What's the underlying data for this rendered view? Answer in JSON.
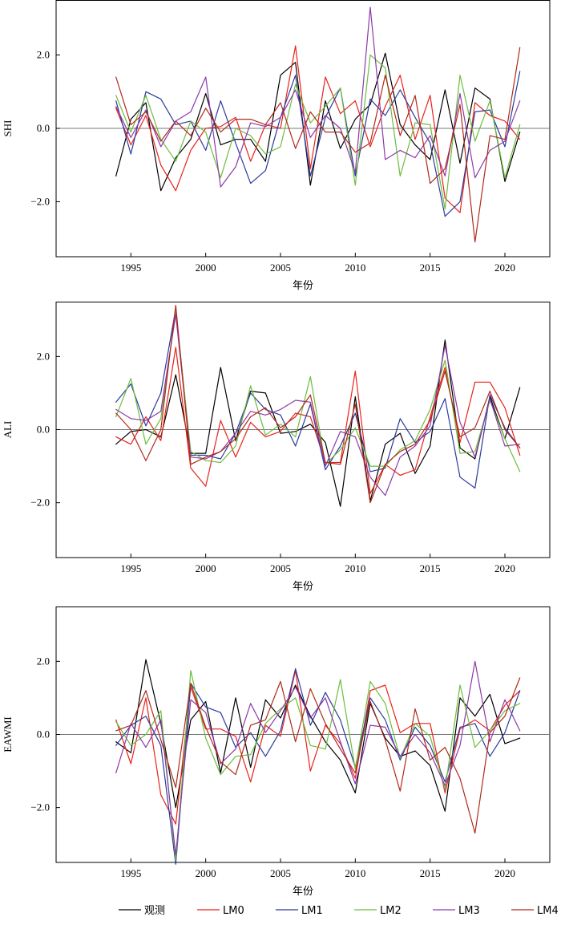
{
  "chart_data": [
    {
      "type": "line",
      "ylabel": "SHI",
      "xlabel": "年份",
      "xlim": [
        1990,
        2023
      ],
      "ylim": [
        -3.5,
        3.5
      ],
      "x_ticks": [
        1995,
        2000,
        2005,
        2010,
        2015,
        2020
      ],
      "y_ticks": [
        -2.0,
        0.0,
        2.0
      ],
      "y_tick_labels": [
        "−2.0",
        "0.0",
        "2.0"
      ],
      "zero_line": true,
      "x": [
        1994,
        1995,
        1996,
        1997,
        1998,
        1999,
        2000,
        2001,
        2002,
        2003,
        2004,
        2005,
        2006,
        2007,
        2008,
        2009,
        2010,
        2011,
        2012,
        2013,
        2014,
        2015,
        2016,
        2017,
        2018,
        2019,
        2020,
        2021
      ],
      "series": [
        {
          "name": "观测",
          "color": "#000000",
          "values": [
            -1.3,
            0.25,
            0.7,
            -1.7,
            -0.8,
            -0.3,
            0.95,
            -0.45,
            -0.3,
            -0.3,
            -0.9,
            1.45,
            1.8,
            -1.55,
            0.75,
            -0.55,
            0.25,
            0.65,
            2.05,
            0.1,
            -0.45,
            -0.85,
            1.05,
            -0.95,
            1.1,
            0.8,
            -1.45,
            -0.1
          ]
        },
        {
          "name": "LM0",
          "color": "#e8221a",
          "values": [
            0.55,
            -0.45,
            0.35,
            -1.0,
            -1.7,
            -0.6,
            0.0,
            0.05,
            0.3,
            -0.9,
            0.1,
            0.0,
            2.25,
            -1.1,
            1.4,
            0.4,
            0.75,
            -0.5,
            0.6,
            1.45,
            -0.3,
            0.9,
            -1.9,
            -2.3,
            0.7,
            0.35,
            0.2,
            -0.3
          ]
        },
        {
          "name": "LM1",
          "color": "#2b3b9c",
          "values": [
            0.75,
            -0.7,
            1.0,
            0.8,
            0.1,
            0.2,
            -0.6,
            0.75,
            -0.4,
            -1.5,
            -1.15,
            0.3,
            1.45,
            -1.3,
            0.3,
            1.1,
            -1.3,
            0.8,
            0.35,
            1.05,
            0.3,
            -0.4,
            -2.4,
            -2.0,
            0.45,
            0.5,
            -0.5,
            1.55
          ]
        },
        {
          "name": "LM2",
          "color": "#6cbd3d",
          "values": [
            0.9,
            -0.1,
            0.9,
            -0.3,
            -0.9,
            0.2,
            -0.1,
            -1.35,
            0.0,
            -0.2,
            -0.7,
            -0.5,
            1.2,
            0.15,
            0.6,
            1.1,
            -1.55,
            2.0,
            1.65,
            -1.3,
            0.15,
            0.1,
            -2.2,
            1.45,
            -0.35,
            0.75,
            -1.35,
            0.1
          ]
        },
        {
          "name": "LM3",
          "color": "#8b3aa8",
          "values": [
            0.6,
            -0.25,
            0.5,
            -0.5,
            0.2,
            0.45,
            1.4,
            -1.6,
            -1.05,
            0.15,
            0.05,
            0.3,
            1.05,
            -0.25,
            0.35,
            0.0,
            -1.2,
            3.3,
            -0.85,
            -0.6,
            -0.8,
            -0.2,
            -1.3,
            0.95,
            -1.35,
            -0.6,
            -0.35,
            0.75
          ]
        },
        {
          "name": "LM4",
          "color": "#b02a1a",
          "values": [
            1.4,
            0.1,
            0.45,
            -0.35,
            0.2,
            -0.2,
            0.55,
            -0.1,
            0.25,
            0.25,
            0.1,
            0.7,
            -0.55,
            0.45,
            -0.1,
            -0.1,
            -0.65,
            -0.4,
            1.45,
            -0.2,
            0.9,
            -1.5,
            -1.1,
            0.65,
            -3.1,
            -0.2,
            -0.3,
            2.2
          ]
        }
      ]
    },
    {
      "type": "line",
      "ylabel": "ALI",
      "xlabel": "年份",
      "xlim": [
        1990,
        2023
      ],
      "ylim": [
        -3.5,
        3.5
      ],
      "x_ticks": [
        1995,
        2000,
        2005,
        2010,
        2015,
        2020
      ],
      "y_ticks": [
        -2.0,
        0.0,
        2.0
      ],
      "y_tick_labels": [
        "−2.0",
        "0.0",
        "2.0"
      ],
      "zero_line": true,
      "x": [
        1994,
        1995,
        1996,
        1997,
        1998,
        1999,
        2000,
        2001,
        2002,
        2003,
        2004,
        2005,
        2006,
        2007,
        2008,
        2009,
        2010,
        2011,
        2012,
        2013,
        2014,
        2015,
        2016,
        2017,
        2018,
        2019,
        2020,
        2021
      ],
      "series": [
        {
          "name": "观测",
          "color": "#000000",
          "values": [
            -0.4,
            -0.05,
            0.0,
            -0.2,
            1.5,
            -0.65,
            -0.65,
            1.7,
            -0.3,
            1.05,
            1.0,
            -0.1,
            -0.05,
            0.15,
            -0.35,
            -2.1,
            0.9,
            -1.95,
            -0.4,
            -0.1,
            -1.2,
            -0.45,
            2.45,
            -0.5,
            -0.8,
            0.9,
            -0.25,
            1.15
          ]
        },
        {
          "name": "LM0",
          "color": "#e8221a",
          "values": [
            -0.2,
            -0.4,
            0.35,
            -0.3,
            2.25,
            -1.05,
            -1.55,
            0.25,
            -0.75,
            0.2,
            -0.2,
            -0.05,
            0.45,
            0.35,
            -0.9,
            -0.9,
            1.6,
            -1.75,
            -0.95,
            -1.25,
            -1.1,
            0.35,
            1.7,
            -0.35,
            1.3,
            1.3,
            0.6,
            -0.7
          ]
        },
        {
          "name": "LM1",
          "color": "#2b3b9c",
          "values": [
            0.75,
            1.25,
            0.1,
            1.0,
            3.3,
            -0.7,
            -0.7,
            -0.8,
            -0.1,
            1.0,
            0.55,
            0.4,
            -0.45,
            0.7,
            -1.1,
            -0.45,
            0.45,
            -1.15,
            -1.05,
            0.3,
            -0.35,
            -0.05,
            0.85,
            -1.3,
            -1.6,
            0.95,
            0.05,
            -0.5
          ]
        },
        {
          "name": "LM2",
          "color": "#6cbd3d",
          "values": [
            0.35,
            1.4,
            -0.4,
            0.3,
            3.25,
            -0.6,
            -0.85,
            -0.9,
            -0.45,
            1.2,
            -0.15,
            0.15,
            -0.2,
            1.45,
            -0.95,
            -0.55,
            0.05,
            -1.0,
            -1.0,
            -0.55,
            -0.3,
            0.55,
            1.9,
            -0.65,
            -0.6,
            0.8,
            -0.25,
            -1.15
          ]
        },
        {
          "name": "LM3",
          "color": "#8b3aa8",
          "values": [
            0.55,
            0.3,
            0.25,
            0.5,
            3.15,
            -0.75,
            -0.8,
            -0.6,
            -0.1,
            0.5,
            0.4,
            0.55,
            0.8,
            0.75,
            -1.0,
            -0.05,
            -0.2,
            -1.3,
            -1.8,
            -0.75,
            -0.45,
            0.1,
            2.3,
            0.2,
            -0.75,
            0.85,
            -0.45,
            -0.4
          ]
        },
        {
          "name": "LM4",
          "color": "#b02a1a",
          "values": [
            0.45,
            0.0,
            -0.85,
            0.0,
            3.4,
            -0.95,
            -0.75,
            -0.6,
            -0.25,
            0.35,
            0.6,
            0.05,
            0.35,
            0.95,
            -0.9,
            -0.95,
            0.7,
            -2.0,
            -0.95,
            -0.6,
            -0.4,
            0.25,
            1.6,
            -0.2,
            0.05,
            1.05,
            0.0,
            -0.5
          ]
        }
      ]
    },
    {
      "type": "line",
      "ylabel": "EAWMI",
      "xlabel": "年份",
      "xlim": [
        1990,
        2023
      ],
      "ylim": [
        -3.5,
        3.5
      ],
      "x_ticks": [
        1995,
        2000,
        2005,
        2010,
        2015,
        2020
      ],
      "y_ticks": [
        -2.0,
        0.0,
        2.0
      ],
      "y_tick_labels": [
        "−2.0",
        "0.0",
        "2.0"
      ],
      "zero_line": true,
      "x": [
        1994,
        1995,
        1996,
        1997,
        1998,
        1999,
        2000,
        2001,
        2002,
        2003,
        2004,
        2005,
        2006,
        2007,
        2008,
        2009,
        2010,
        2011,
        2012,
        2013,
        2014,
        2015,
        2016,
        2017,
        2018,
        2019,
        2020,
        2021
      ],
      "series": [
        {
          "name": "观测",
          "color": "#000000",
          "values": [
            -0.2,
            -0.5,
            2.05,
            0.3,
            -2.0,
            0.4,
            0.9,
            -1.05,
            1.0,
            -0.9,
            0.95,
            0.45,
            1.35,
            0.5,
            -0.2,
            -0.7,
            -1.6,
            0.85,
            -0.1,
            -0.6,
            -0.45,
            -0.85,
            -2.1,
            1.0,
            0.5,
            1.1,
            -0.25,
            -0.1
          ]
        },
        {
          "name": "LM0",
          "color": "#e8221a",
          "values": [
            0.4,
            -0.8,
            1.0,
            -1.65,
            -2.45,
            1.3,
            0.15,
            0.15,
            -0.05,
            -1.3,
            0.25,
            -0.05,
            1.75,
            -1.0,
            0.25,
            -0.25,
            -1.2,
            1.2,
            1.35,
            0.05,
            0.3,
            0.3,
            -1.6,
            0.15,
            0.4,
            0.1,
            0.8,
            1.2
          ]
        },
        {
          "name": "LM1",
          "color": "#2b3b9c",
          "values": [
            -0.3,
            0.25,
            0.5,
            -0.3,
            -3.55,
            1.4,
            0.75,
            0.6,
            -0.35,
            0.05,
            -0.6,
            0.1,
            1.8,
            0.25,
            1.15,
            0.4,
            -0.9,
            1.0,
            0.4,
            -0.7,
            0.2,
            -0.3,
            -1.3,
            0.2,
            0.3,
            -0.6,
            0.05,
            1.2
          ]
        },
        {
          "name": "LM2",
          "color": "#6cbd3d",
          "values": [
            0.35,
            -0.3,
            0.0,
            0.65,
            -3.45,
            1.75,
            -0.1,
            -1.1,
            -0.6,
            -0.55,
            0.3,
            0.7,
            1.0,
            -0.3,
            -0.4,
            1.5,
            -0.95,
            1.45,
            0.85,
            -0.65,
            0.3,
            -0.05,
            -1.5,
            1.35,
            -0.35,
            0.1,
            0.65,
            0.85
          ]
        },
        {
          "name": "LM3",
          "color": "#8b3aa8",
          "values": [
            -1.05,
            0.3,
            -0.35,
            0.4,
            -3.3,
            0.95,
            0.6,
            -0.8,
            -0.4,
            0.85,
            0.05,
            0.65,
            1.3,
            0.45,
            1.0,
            -0.2,
            -1.35,
            0.25,
            0.2,
            -0.6,
            0.0,
            -0.5,
            -1.4,
            -0.3,
            2.0,
            -0.2,
            0.95,
            0.1
          ]
        },
        {
          "name": "LM4",
          "color": "#b02a1a",
          "values": [
            0.1,
            0.25,
            1.2,
            -0.15,
            -1.45,
            1.4,
            0.2,
            -0.75,
            -1.1,
            0.25,
            0.4,
            1.45,
            -0.2,
            1.25,
            0.3,
            -0.4,
            -1.05,
            0.9,
            -0.15,
            -1.55,
            0.7,
            -0.7,
            -0.35,
            -1.2,
            -2.7,
            0.05,
            0.5,
            1.55
          ]
        }
      ]
    }
  ],
  "legend": {
    "placement": "bottom-center",
    "items": [
      {
        "label": "观测",
        "color": "#000000"
      },
      {
        "label": "LM0",
        "color": "#e8221a"
      },
      {
        "label": "LM1",
        "color": "#2b3b9c"
      },
      {
        "label": "LM2",
        "color": "#6cbd3d"
      },
      {
        "label": "LM3",
        "color": "#8b3aa8"
      },
      {
        "label": "LM4",
        "color": "#b02a1a"
      }
    ]
  }
}
